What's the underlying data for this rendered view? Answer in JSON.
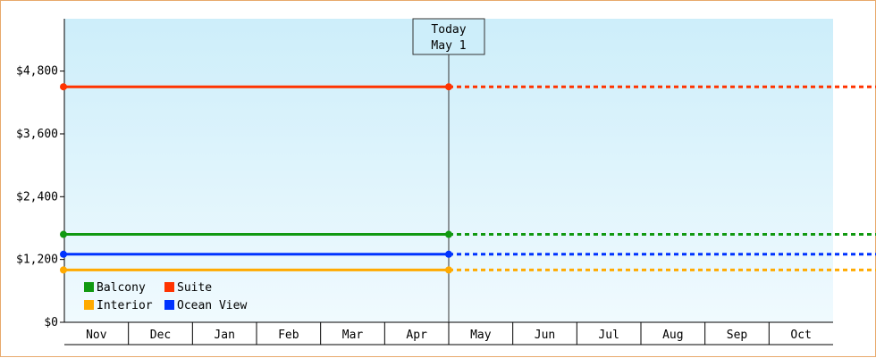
{
  "chart_data": {
    "type": "line",
    "categories": [
      "Nov",
      "Dec",
      "Jan",
      "Feb",
      "Mar",
      "Apr",
      "May",
      "Jun",
      "Jul",
      "Aug",
      "Sep",
      "Oct"
    ],
    "y_ticks": [
      "$0",
      "$1,200",
      "$2,400",
      "$3,600",
      "$4,800"
    ],
    "y_tick_values": [
      0,
      1200,
      2400,
      3600,
      4800
    ],
    "ylim": [
      0,
      5800
    ],
    "today_label": "Today",
    "today_date": "May 1",
    "today_category": "May",
    "series": [
      {
        "name": "Suite",
        "color": "#ff3300",
        "value": 4500
      },
      {
        "name": "Balcony",
        "color": "#119911",
        "value": 1680
      },
      {
        "name": "Ocean View",
        "color": "#0033ff",
        "value": 1300
      },
      {
        "name": "Interior",
        "color": "#ffaa00",
        "value": 1000
      }
    ],
    "legend": [
      {
        "name": "Balcony",
        "color": "#119911"
      },
      {
        "name": "Suite",
        "color": "#ff3300"
      },
      {
        "name": "Interior",
        "color": "#ffaa00"
      },
      {
        "name": "Ocean View",
        "color": "#0033ff"
      }
    ],
    "legend_position": "bottom-left",
    "background_gradient": [
      "#cdeefa",
      "#f0fafe"
    ]
  }
}
